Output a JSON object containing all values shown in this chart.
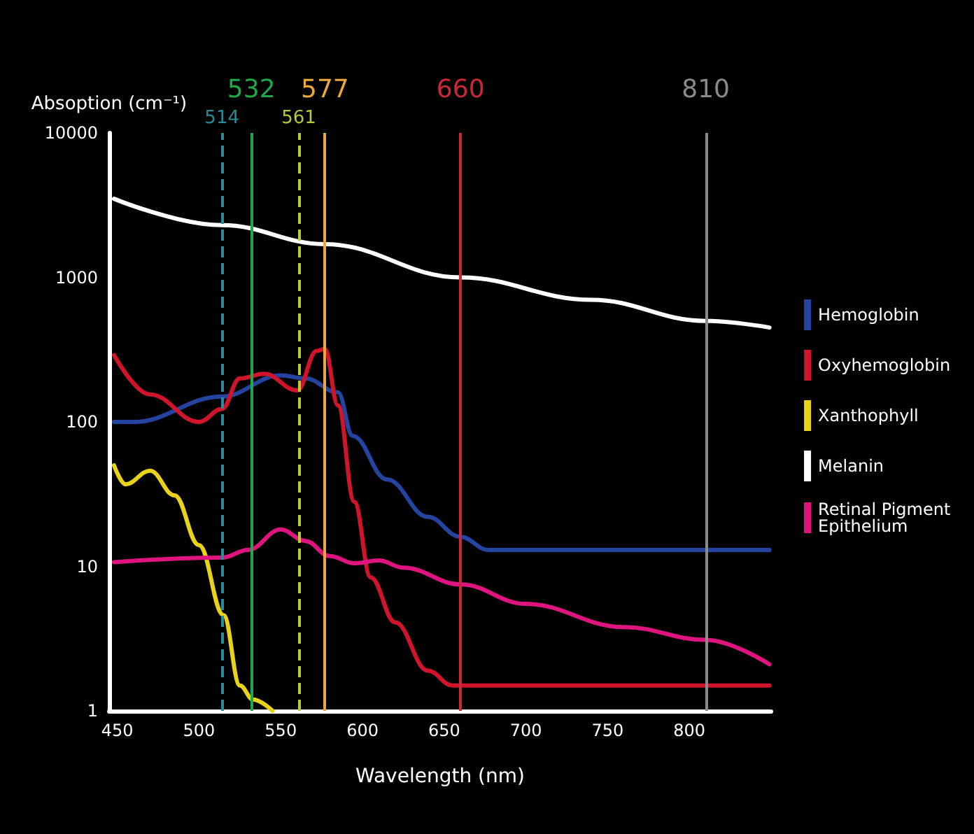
{
  "chart_data": {
    "type": "line",
    "xlabel": "Wavelength (nm)",
    "ylabel": "Absoption (cm⁻¹)",
    "log": "y",
    "grid": false,
    "legend": "right",
    "marker": "none",
    "line_style": "solid",
    "xlim": [
      445,
      850
    ],
    "xticks": [
      450,
      500,
      550,
      600,
      650,
      700,
      750,
      800
    ],
    "ylim": [
      1,
      10000
    ],
    "yticks": [
      1,
      10,
      100,
      1000,
      10000
    ],
    "series": [
      {
        "name": "Hemoglobin",
        "color": "#2444a0",
        "x": [
          448,
          460,
          514,
          550,
          565,
          585,
          594,
          615,
          640,
          660,
          677,
          720,
          780,
          849
        ],
        "values": [
          100,
          100,
          150,
          210,
          200,
          160,
          80,
          40,
          22,
          16,
          13,
          13,
          13,
          13
        ]
      },
      {
        "name": "Oxyhemoglobin",
        "color": "#d0142c",
        "x": [
          448,
          470,
          500,
          514,
          525,
          540,
          560,
          572,
          577,
          585,
          595,
          605,
          620,
          640,
          655,
          660,
          720,
          780,
          849
        ],
        "values": [
          290,
          155,
          100,
          123,
          200,
          215,
          165,
          310,
          320,
          130,
          28,
          8.4,
          4.1,
          1.9,
          1.5,
          1.5,
          1.5,
          1.5,
          1.5
        ]
      },
      {
        "name": "Xanthophyll",
        "color": "#e8d21a",
        "x": [
          448,
          455,
          470,
          485,
          500,
          515,
          525,
          533,
          545
        ],
        "values": [
          50,
          37,
          46,
          31,
          14,
          4.6,
          1.5,
          1.2,
          1
        ]
      },
      {
        "name": "Melanin",
        "color": "#ffffff",
        "x": [
          448,
          514,
          577,
          660,
          740,
          810,
          849
        ],
        "values": [
          3500,
          2300,
          1700,
          1000,
          700,
          500,
          450
        ]
      },
      {
        "name": "Retinal Pigment Epithelium",
        "color": "#e0147e",
        "x": [
          448,
          514,
          530,
          550,
          565,
          580,
          595,
          610,
          625,
          660,
          700,
          760,
          810,
          849
        ],
        "values": [
          10.7,
          11.5,
          13,
          18,
          15,
          11.8,
          10.5,
          11,
          9.8,
          7.5,
          5.5,
          3.8,
          3.1,
          2.1
        ]
      }
    ],
    "ref_lines": [
      {
        "axis": "x",
        "value": 514,
        "label": "514",
        "color": "#2a8a9a",
        "line_style": "dashed"
      },
      {
        "axis": "x",
        "value": 532,
        "label": "532",
        "color": "#1fa84a",
        "line_style": "solid"
      },
      {
        "axis": "x",
        "value": 561,
        "label": "561",
        "color": "#b8c83a",
        "line_style": "dashed"
      },
      {
        "axis": "x",
        "value": 577,
        "label": "577",
        "color": "#e8a83a",
        "line_style": "solid"
      },
      {
        "axis": "x",
        "value": 660,
        "label": "660",
        "color": "#c8283a",
        "line_style": "solid"
      },
      {
        "axis": "x",
        "value": 810,
        "label": "810",
        "color": "#8a8a8a",
        "line_style": "solid"
      }
    ]
  }
}
